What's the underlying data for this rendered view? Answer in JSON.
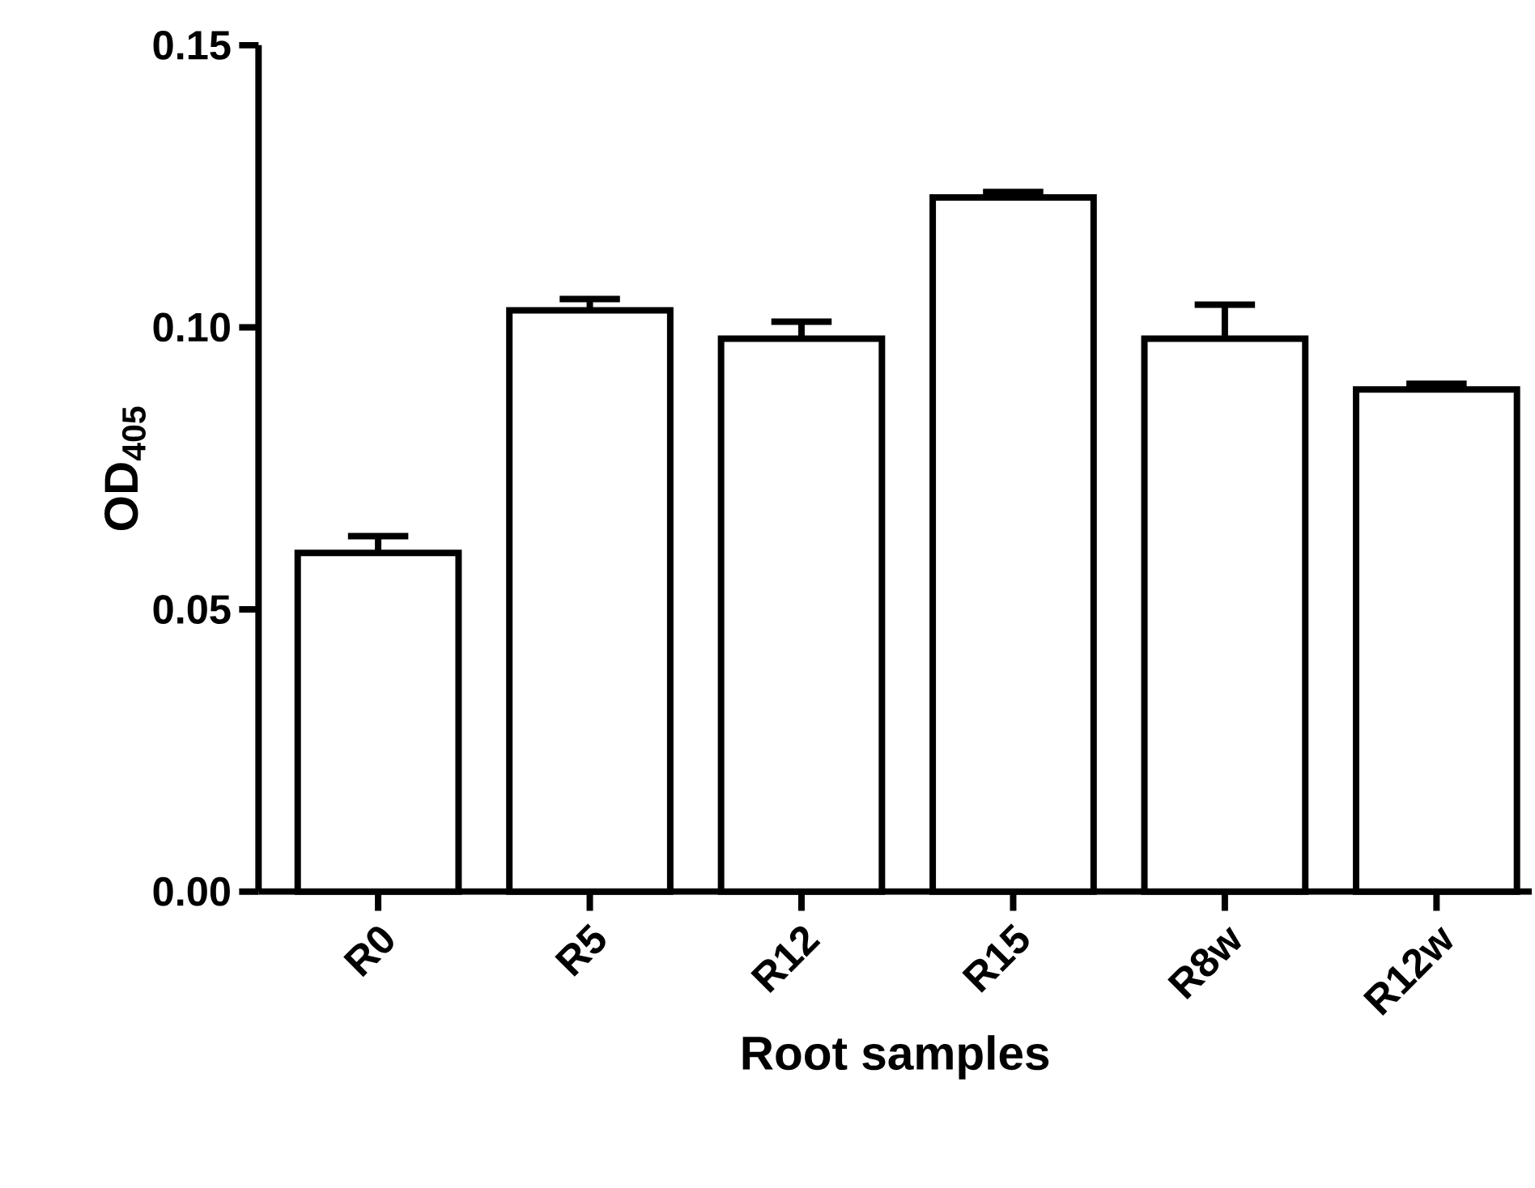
{
  "chart_data": {
    "type": "bar",
    "xlabel": "Root samples",
    "ylabel": "OD$_{405}$",
    "categories": [
      "R0",
      "R5",
      "R12",
      "R15",
      "R8w",
      "R12w"
    ],
    "values": [
      0.06,
      0.103,
      0.098,
      0.123,
      0.098,
      0.089
    ],
    "errors": [
      0.003,
      0.002,
      0.003,
      0.001,
      0.006,
      0.001
    ],
    "color": "#ffffff",
    "ylim": [
      0,
      0.15
    ],
    "yticks": [
      {
        "value": 0,
        "label": "0.00"
      },
      {
        "value": 0.05,
        "label": "0.05"
      },
      {
        "value": 0.1,
        "label": "0.10"
      },
      {
        "value": 0.15,
        "label": "0.15"
      }
    ],
    "grid": false
  }
}
